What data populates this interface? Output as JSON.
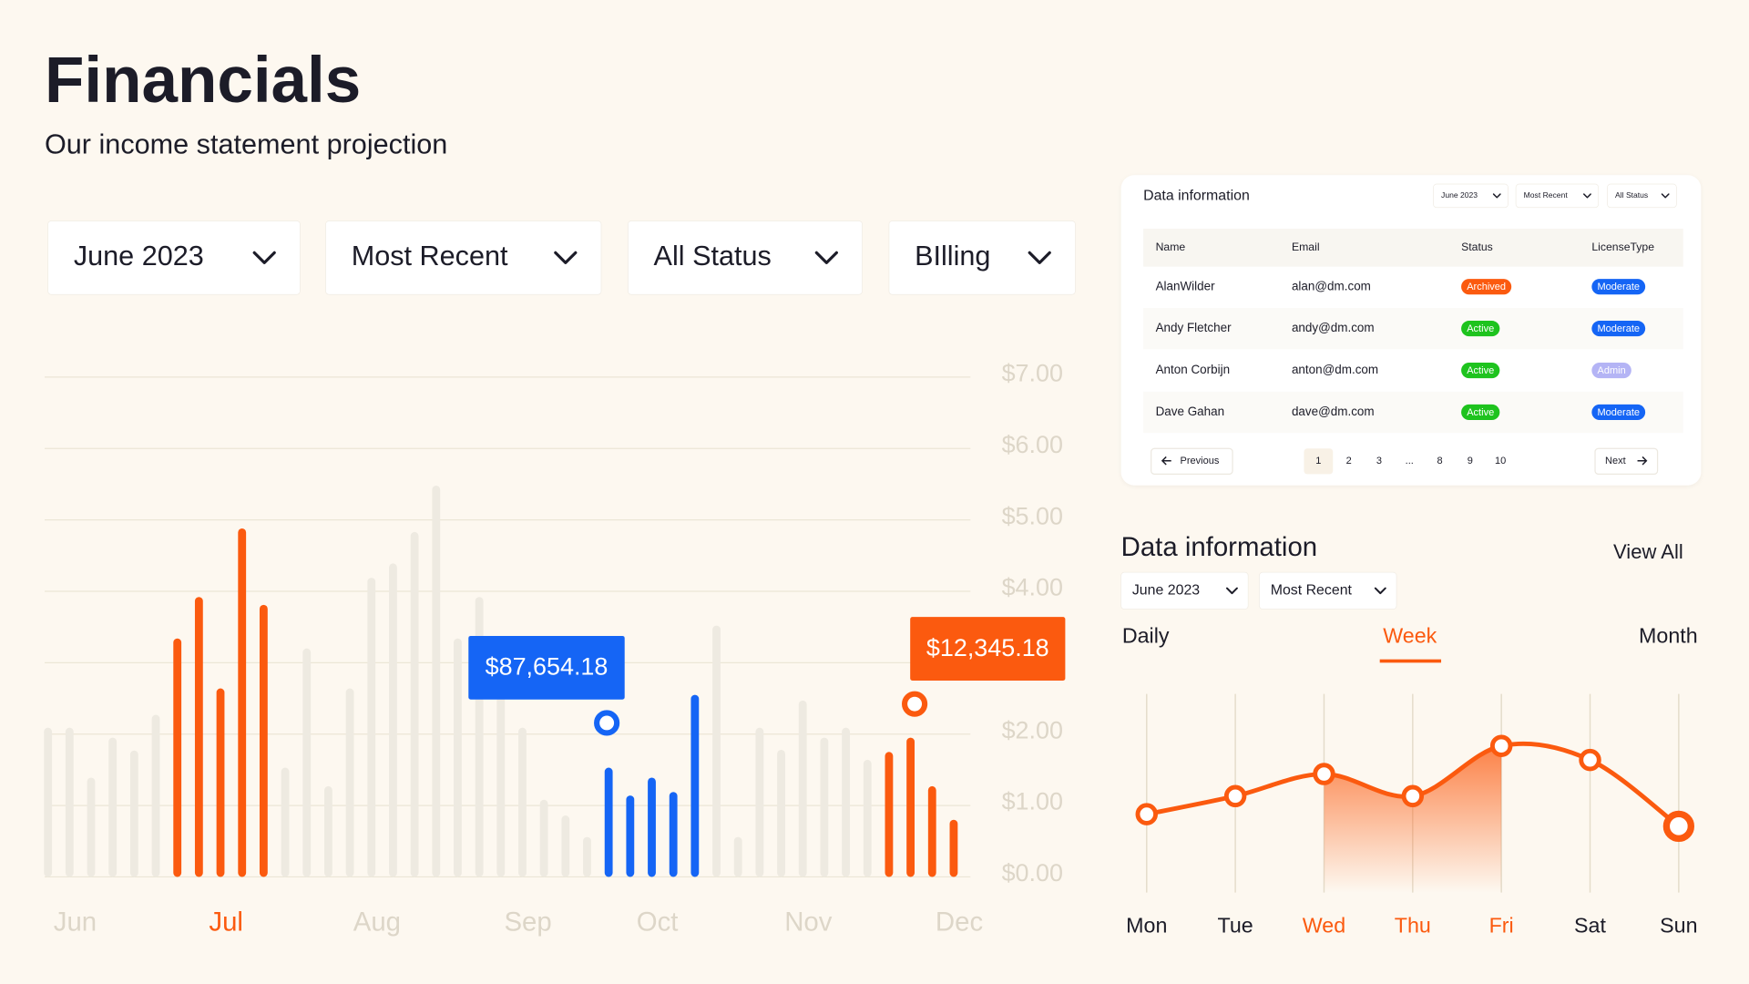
{
  "header": {
    "title": "Financials",
    "subtitle": "Our income statement projection"
  },
  "filters": [
    "June 2023",
    "Most Recent",
    "All Status",
    "BIlling"
  ],
  "chart_data": [
    {
      "type": "bar",
      "categories": [
        null,
        "Jun",
        null,
        null,
        null,
        null,
        null,
        null,
        "Jul",
        null,
        null,
        null,
        null,
        null,
        null,
        "Aug",
        null,
        null,
        null,
        null,
        null,
        null,
        "Sep",
        null,
        null,
        null,
        null,
        null,
        "Oct",
        null,
        null,
        null,
        null,
        null,
        null,
        "Nov",
        null,
        null,
        null,
        null,
        null,
        null,
        "Dec"
      ],
      "category_colors": [
        null,
        "#ddd6c8",
        null,
        null,
        null,
        null,
        null,
        null,
        "#fb5a0f",
        null,
        null,
        null,
        null,
        null,
        null,
        "#ddd6c8",
        null,
        null,
        null,
        null,
        null,
        null,
        "#ddd6c8",
        null,
        null,
        null,
        null,
        null,
        "#ddd6c8",
        null,
        null,
        null,
        null,
        null,
        null,
        "#ddd6c8",
        null,
        null,
        null,
        null,
        null,
        null,
        "#ddd6c8"
      ],
      "values": [
        2.09,
        2.09,
        1.39,
        1.95,
        1.77,
        2.27,
        3.34,
        3.92,
        2.64,
        4.88,
        3.81,
        1.53,
        3.2,
        1.27,
        2.64,
        4.19,
        4.39,
        4.83,
        5.48,
        3.34,
        3.92,
        2.59,
        2.09,
        1.08,
        0.86,
        0.56,
        1.53,
        1.14,
        1.39,
        1.19,
        2.55,
        3.52,
        0.56,
        2.09,
        1.78,
        2.47,
        1.95,
        2.09,
        1.64,
        1.75,
        1.95,
        1.27,
        0.8
      ],
      "colors": [
        "#eeeae1",
        "#eeeae1",
        "#eeeae1",
        "#eeeae1",
        "#eeeae1",
        "#eeeae1",
        "#fb5a0f",
        "#fb5a0f",
        "#fb5a0f",
        "#fb5a0f",
        "#fb5a0f",
        "#eeeae1",
        "#eeeae1",
        "#eeeae1",
        "#eeeae1",
        "#eeeae1",
        "#eeeae1",
        "#eeeae1",
        "#eeeae1",
        "#eeeae1",
        "#eeeae1",
        "#eeeae1",
        "#eeeae1",
        "#eeeae1",
        "#eeeae1",
        "#eeeae1",
        "#1565f5",
        "#1565f5",
        "#1565f5",
        "#1565f5",
        "#1565f5",
        "#eeeae1",
        "#eeeae1",
        "#eeeae1",
        "#eeeae1",
        "#eeeae1",
        "#eeeae1",
        "#eeeae1",
        "#eeeae1",
        "#fb5a0f",
        "#fb5a0f",
        "#fb5a0f",
        "#fb5a0f"
      ],
      "ylim": [
        0,
        7
      ],
      "yticks": [
        {
          "value": 0,
          "label": "$0.00"
        },
        {
          "value": 1,
          "label": "$1.00"
        },
        {
          "value": 2,
          "label": "$2.00"
        },
        {
          "value": 3,
          "label": "$3.00"
        },
        {
          "value": 4,
          "label": "$4.00"
        },
        {
          "value": 5,
          "label": "$5.00"
        },
        {
          "value": 6,
          "label": "$6.00"
        },
        {
          "value": 7,
          "label": "$7.00"
        }
      ],
      "grid": true,
      "annotations": [
        {
          "text": "$87,654.18",
          "color": "#1565f5"
        },
        {
          "text": "$12,345.18",
          "color": "#fb5a0f"
        }
      ]
    },
    {
      "type": "line",
      "categories": [
        "Mon",
        "Tue",
        "Wed",
        "Thu",
        "Fri",
        "Sat",
        "Sun"
      ],
      "category_colors": [
        "#1c1c28",
        "#1c1c28",
        "#fb5a0f",
        "#fb5a0f",
        "#fb5a0f",
        "#1c1c28",
        "#1c1c28"
      ],
      "values": [
        39,
        48,
        59,
        48,
        73,
        66,
        33
      ],
      "color": "#fb5a0f",
      "ylim": [
        0,
        100
      ],
      "highlight": [
        2,
        4
      ]
    }
  ],
  "table": {
    "title": "Data information",
    "filters": [
      "June 2023",
      "Most Recent",
      "All Status"
    ],
    "columns": [
      "Name",
      "Email",
      "Status",
      "LicenseType"
    ],
    "rows": [
      {
        "name": "AlanWilder",
        "email": "alan@dm.com",
        "status": "Archived",
        "status_color": "#fb5a0f",
        "license": "Moderate",
        "license_color": "#1565f5"
      },
      {
        "name": "Andy Fletcher",
        "email": "andy@dm.com",
        "status": "Active",
        "status_color": "#1ec31e",
        "license": "Moderate",
        "license_color": "#1565f5"
      },
      {
        "name": "Anton Corbijn",
        "email": "anton@dm.com",
        "status": "Active",
        "status_color": "#1ec31e",
        "license": "Admin",
        "license_color": "#b4b4f5"
      },
      {
        "name": "Dave Gahan",
        "email": "dave@dm.com",
        "status": "Active",
        "status_color": "#1ec31e",
        "license": "Moderate",
        "license_color": "#1565f5"
      }
    ],
    "pagination": {
      "previous": "Previous",
      "pages": [
        "1",
        "2",
        "3",
        "...",
        "8",
        "9",
        "10"
      ],
      "next": "Next"
    }
  },
  "panel": {
    "title": "Data information",
    "link": "View All",
    "filters": [
      "June 2023",
      "Most Recent"
    ],
    "tabs": [
      "Daily",
      "Week",
      "Month"
    ],
    "active_tab": 1
  }
}
